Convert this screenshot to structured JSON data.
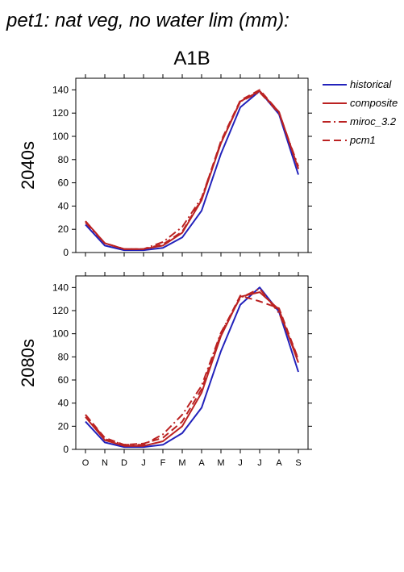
{
  "page_title": "pet1: nat veg, no water lim (mm):",
  "scenario_title": "A1B",
  "legend": [
    {
      "label": "historical",
      "color": "#2222bb",
      "dash": "solid"
    },
    {
      "label": "composite",
      "color": "#bb2222",
      "dash": "solid"
    },
    {
      "label": "miroc_3.2",
      "color": "#bb2222",
      "dash": "dashdot"
    },
    {
      "label": "pcm1",
      "color": "#bb2222",
      "dash": "dash"
    }
  ],
  "chart_data": [
    {
      "type": "line",
      "title": "2040s",
      "categories": [
        "O",
        "N",
        "D",
        "J",
        "F",
        "M",
        "A",
        "M",
        "J",
        "J",
        "A",
        "S"
      ],
      "ylim": [
        0,
        150
      ],
      "yticks": [
        0,
        20,
        40,
        60,
        80,
        100,
        120,
        140
      ],
      "series": [
        {
          "name": "historical",
          "values": [
            24,
            6,
            2,
            2,
            4,
            13,
            36,
            85,
            125,
            139,
            119,
            67
          ]
        },
        {
          "name": "composite",
          "values": [
            27,
            8,
            3,
            3,
            6,
            17,
            45,
            94,
            130,
            139,
            121,
            72
          ]
        },
        {
          "name": "miroc_3.2",
          "values": [
            26,
            8,
            3,
            3,
            9,
            22,
            47,
            95,
            130,
            138,
            120,
            74
          ]
        },
        {
          "name": "pcm1",
          "values": [
            27,
            8,
            3,
            3,
            7,
            18,
            46,
            96,
            131,
            140,
            121,
            72
          ]
        }
      ]
    },
    {
      "type": "line",
      "title": "2080s",
      "categories": [
        "O",
        "N",
        "D",
        "J",
        "F",
        "M",
        "A",
        "M",
        "J",
        "J",
        "A",
        "S"
      ],
      "ylim": [
        0,
        150
      ],
      "yticks": [
        0,
        20,
        40,
        60,
        80,
        100,
        120,
        140
      ],
      "series": [
        {
          "name": "historical",
          "values": [
            24,
            6,
            2,
            2,
            4,
            14,
            36,
            85,
            125,
            140,
            119,
            67
          ]
        },
        {
          "name": "composite",
          "values": [
            28,
            8,
            3,
            3,
            7,
            20,
            49,
            98,
            132,
            136,
            121,
            75
          ]
        },
        {
          "name": "miroc_3.2",
          "values": [
            30,
            9,
            4,
            4,
            13,
            30,
            55,
            101,
            131,
            139,
            118,
            78
          ]
        },
        {
          "name": "pcm1",
          "values": [
            30,
            10,
            4,
            5,
            10,
            24,
            52,
            100,
            133,
            128,
            122,
            78
          ]
        }
      ]
    }
  ]
}
